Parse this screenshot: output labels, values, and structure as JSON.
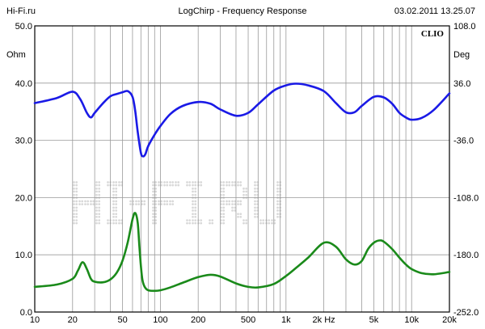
{
  "header": {
    "site": "Hi-Fi.ru",
    "title": "LogChirp - Frequency Response",
    "timestamp": "03.02.2011 13.25.07"
  },
  "brand": "CLIO",
  "watermark": "HI-FI.RU",
  "colors": {
    "impedance": "#1a1ae6",
    "phase": "#1a8a1a",
    "grid": "#9a9a9a",
    "watermark": "#d8d8d8"
  },
  "chart_data": {
    "type": "line",
    "title": "LogChirp - Frequency Response",
    "x_scale": "log",
    "xlim": [
      10,
      20000
    ],
    "x_ticks": [
      {
        "v": 10,
        "label": "10"
      },
      {
        "v": 20,
        "label": "20"
      },
      {
        "v": 50,
        "label": "50"
      },
      {
        "v": 100,
        "label": "100"
      },
      {
        "v": 200,
        "label": "200"
      },
      {
        "v": 500,
        "label": "500"
      },
      {
        "v": 1000,
        "label": "1k"
      },
      {
        "v": 2000,
        "label": "2k Hz"
      },
      {
        "v": 5000,
        "label": "5k"
      },
      {
        "v": 10000,
        "label": "10k"
      },
      {
        "v": 20000,
        "label": "20k"
      }
    ],
    "y_left": {
      "unit": "Ohm",
      "lim": [
        0,
        50
      ],
      "ticks": [
        "0.0",
        "10.0",
        "20.0",
        "30.0",
        "40.0",
        "50.0"
      ]
    },
    "y_right": {
      "unit": "Deg",
      "lim": [
        -252,
        108
      ],
      "ticks": [
        "-252.0",
        "-180.0",
        "-108.0",
        "-36.0",
        "36.0",
        "108.0"
      ]
    },
    "grid": true,
    "series": [
      {
        "axis": "left",
        "color": "#1a1ae6",
        "x": [
          10,
          15,
          20,
          23,
          26,
          28,
          30,
          35,
          40,
          45,
          50,
          55,
          60,
          63,
          66,
          70,
          73,
          76,
          80,
          90,
          100,
          120,
          150,
          200,
          250,
          300,
          400,
          500,
          600,
          800,
          1000,
          1200,
          1500,
          2000,
          2500,
          3000,
          3500,
          4000,
          5000,
          6000,
          7000,
          8000,
          9000,
          10000,
          12000,
          15000,
          20000
        ],
        "y": [
          36.5,
          37.4,
          38.5,
          37.2,
          34.8,
          34.0,
          34.8,
          36.5,
          37.7,
          38.1,
          38.4,
          38.6,
          37.6,
          35.2,
          31.5,
          27.8,
          27.2,
          27.6,
          29.0,
          31.0,
          32.5,
          34.6,
          36.0,
          36.7,
          36.4,
          35.4,
          34.3,
          34.8,
          36.3,
          38.7,
          39.6,
          39.9,
          39.6,
          38.6,
          36.5,
          34.9,
          34.9,
          36.0,
          37.6,
          37.5,
          36.4,
          34.8,
          34.0,
          33.6,
          33.9,
          35.3,
          38.2
        ]
      },
      {
        "axis": "left",
        "color": "#1a8a1a",
        "x": [
          10,
          15,
          20,
          22,
          24,
          26,
          28,
          30,
          35,
          40,
          45,
          50,
          55,
          60,
          63,
          66,
          68,
          70,
          72,
          75,
          80,
          90,
          100,
          120,
          150,
          200,
          250,
          300,
          400,
          500,
          600,
          800,
          1000,
          1200,
          1500,
          2000,
          2500,
          3000,
          3500,
          4000,
          4500,
          5000,
          5500,
          6000,
          7000,
          8000,
          9000,
          10000,
          12000,
          15000,
          20000
        ],
        "y": [
          4.4,
          4.8,
          5.8,
          7.2,
          8.7,
          7.5,
          5.8,
          5.3,
          5.2,
          5.7,
          6.9,
          9.0,
          12.2,
          16.2,
          17.3,
          15.6,
          11.6,
          8.0,
          5.6,
          4.4,
          3.8,
          3.7,
          3.8,
          4.3,
          5.1,
          6.1,
          6.5,
          6.2,
          5.0,
          4.4,
          4.3,
          4.9,
          6.3,
          7.7,
          9.5,
          12.1,
          11.4,
          9.2,
          8.3,
          8.9,
          11.0,
          12.1,
          12.5,
          12.3,
          11.0,
          9.5,
          8.3,
          7.5,
          6.8,
          6.6,
          7.0
        ]
      }
    ]
  }
}
